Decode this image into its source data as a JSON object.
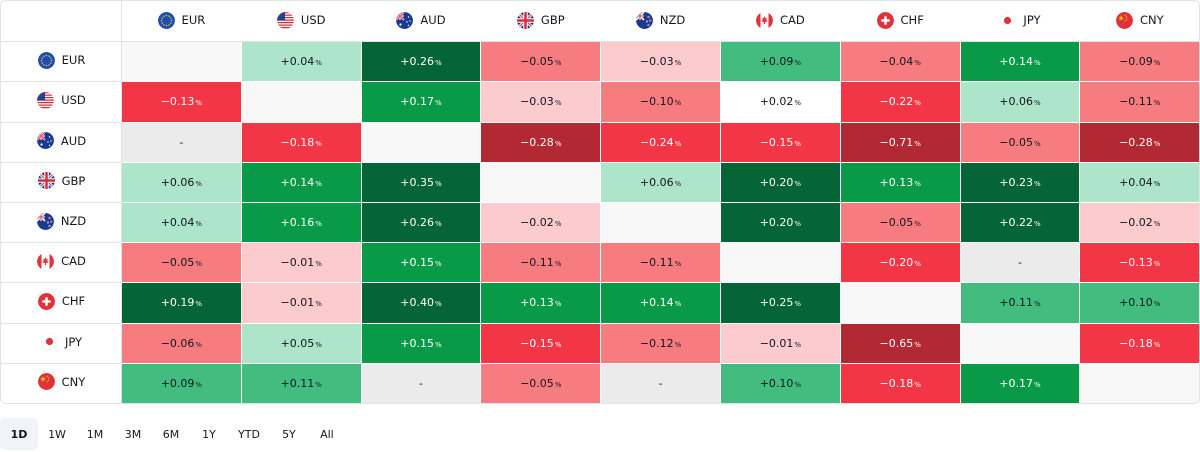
{
  "currencies": [
    {
      "code": "EUR",
      "flag": "eu-flag-icon"
    },
    {
      "code": "USD",
      "flag": "us-flag-icon"
    },
    {
      "code": "AUD",
      "flag": "au-flag-icon"
    },
    {
      "code": "GBP",
      "flag": "gb-flag-icon"
    },
    {
      "code": "NZD",
      "flag": "nz-flag-icon"
    },
    {
      "code": "CAD",
      "flag": "ca-flag-icon"
    },
    {
      "code": "CHF",
      "flag": "ch-flag-icon"
    },
    {
      "code": "JPY",
      "flag": "jp-flag-icon"
    },
    {
      "code": "CNY",
      "flag": "cn-flag-icon"
    }
  ],
  "percent_suffix": "%",
  "rows": [
    {
      "code": "EUR",
      "cells": [
        {
          "v": "",
          "c": "self"
        },
        {
          "v": "+0.04",
          "c": "lg"
        },
        {
          "v": "+0.26",
          "c": "dg"
        },
        {
          "v": "−0.05",
          "c": "mr"
        },
        {
          "v": "−0.03",
          "c": "lr"
        },
        {
          "v": "+0.09",
          "c": "lgn"
        },
        {
          "v": "−0.04",
          "c": "mr"
        },
        {
          "v": "+0.14",
          "c": "mg"
        },
        {
          "v": "−0.09",
          "c": "mr"
        }
      ]
    },
    {
      "code": "USD",
      "cells": [
        {
          "v": "−0.13",
          "c": "r"
        },
        {
          "v": "",
          "c": "self"
        },
        {
          "v": "+0.17",
          "c": "mg"
        },
        {
          "v": "−0.03",
          "c": "lr"
        },
        {
          "v": "−0.10",
          "c": "mr"
        },
        {
          "v": "+0.02",
          "c": "wh"
        },
        {
          "v": "−0.22",
          "c": "r"
        },
        {
          "v": "+0.06",
          "c": "lg"
        },
        {
          "v": "−0.11",
          "c": "mr"
        }
      ]
    },
    {
      "code": "AUD",
      "cells": [
        {
          "v": "-",
          "c": "nil"
        },
        {
          "v": "−0.18",
          "c": "r"
        },
        {
          "v": "",
          "c": "self"
        },
        {
          "v": "−0.28",
          "c": "dr"
        },
        {
          "v": "−0.24",
          "c": "r"
        },
        {
          "v": "−0.15",
          "c": "r"
        },
        {
          "v": "−0.71",
          "c": "dr"
        },
        {
          "v": "−0.05",
          "c": "mr"
        },
        {
          "v": "−0.28",
          "c": "dr"
        }
      ]
    },
    {
      "code": "GBP",
      "cells": [
        {
          "v": "+0.06",
          "c": "lg"
        },
        {
          "v": "+0.14",
          "c": "mg"
        },
        {
          "v": "+0.35",
          "c": "dg"
        },
        {
          "v": "",
          "c": "self"
        },
        {
          "v": "+0.06",
          "c": "lg"
        },
        {
          "v": "+0.20",
          "c": "dg"
        },
        {
          "v": "+0.13",
          "c": "mg"
        },
        {
          "v": "+0.23",
          "c": "dg"
        },
        {
          "v": "+0.04",
          "c": "lg"
        }
      ]
    },
    {
      "code": "NZD",
      "cells": [
        {
          "v": "+0.04",
          "c": "lg"
        },
        {
          "v": "+0.16",
          "c": "mg"
        },
        {
          "v": "+0.26",
          "c": "dg"
        },
        {
          "v": "−0.02",
          "c": "lr"
        },
        {
          "v": "",
          "c": "self"
        },
        {
          "v": "+0.20",
          "c": "dg"
        },
        {
          "v": "−0.05",
          "c": "mr"
        },
        {
          "v": "+0.22",
          "c": "dg"
        },
        {
          "v": "−0.02",
          "c": "lr"
        }
      ]
    },
    {
      "code": "CAD",
      "cells": [
        {
          "v": "−0.05",
          "c": "mr"
        },
        {
          "v": "−0.01",
          "c": "lr"
        },
        {
          "v": "+0.15",
          "c": "mg"
        },
        {
          "v": "−0.11",
          "c": "mr"
        },
        {
          "v": "−0.11",
          "c": "mr"
        },
        {
          "v": "",
          "c": "self"
        },
        {
          "v": "−0.20",
          "c": "r"
        },
        {
          "v": "-",
          "c": "nil"
        },
        {
          "v": "−0.13",
          "c": "r"
        }
      ]
    },
    {
      "code": "CHF",
      "cells": [
        {
          "v": "+0.19",
          "c": "dg"
        },
        {
          "v": "−0.01",
          "c": "lr"
        },
        {
          "v": "+0.40",
          "c": "dg"
        },
        {
          "v": "+0.13",
          "c": "mg"
        },
        {
          "v": "+0.14",
          "c": "mg"
        },
        {
          "v": "+0.25",
          "c": "dg"
        },
        {
          "v": "",
          "c": "self"
        },
        {
          "v": "+0.11",
          "c": "lgn"
        },
        {
          "v": "+0.10",
          "c": "lgn"
        }
      ]
    },
    {
      "code": "JPY",
      "cells": [
        {
          "v": "−0.06",
          "c": "mr"
        },
        {
          "v": "+0.05",
          "c": "lg"
        },
        {
          "v": "+0.15",
          "c": "mg"
        },
        {
          "v": "−0.15",
          "c": "r"
        },
        {
          "v": "−0.12",
          "c": "mr"
        },
        {
          "v": "−0.01",
          "c": "lr"
        },
        {
          "v": "−0.65",
          "c": "dr"
        },
        {
          "v": "",
          "c": "self"
        },
        {
          "v": "−0.18",
          "c": "r"
        }
      ]
    },
    {
      "code": "CNY",
      "cells": [
        {
          "v": "+0.09",
          "c": "lgn"
        },
        {
          "v": "+0.11",
          "c": "lgn"
        },
        {
          "v": "-",
          "c": "nil"
        },
        {
          "v": "−0.05",
          "c": "mr"
        },
        {
          "v": "-",
          "c": "nil"
        },
        {
          "v": "+0.10",
          "c": "lgn"
        },
        {
          "v": "−0.18",
          "c": "r"
        },
        {
          "v": "+0.17",
          "c": "mg"
        },
        {
          "v": "",
          "c": "self"
        }
      ]
    }
  ],
  "periods": [
    {
      "label": "1D",
      "active": true
    },
    {
      "label": "1W",
      "active": false
    },
    {
      "label": "1M",
      "active": false
    },
    {
      "label": "3M",
      "active": false
    },
    {
      "label": "6M",
      "active": false
    },
    {
      "label": "1Y",
      "active": false
    },
    {
      "label": "YTD",
      "active": false
    },
    {
      "label": "5Y",
      "active": false
    },
    {
      "label": "All",
      "active": false
    }
  ],
  "colors": {
    "dark_green": "#056536",
    "green": "#089a47",
    "mid_green": "#42bd7f",
    "light_green": "#ace5c9",
    "light_red": "#fccbcd",
    "mid_red": "#f77c80",
    "red": "#f23645",
    "dark_red": "#b22833",
    "no_data": "#ebebeb",
    "diagonal": "#f8f8f8"
  }
}
